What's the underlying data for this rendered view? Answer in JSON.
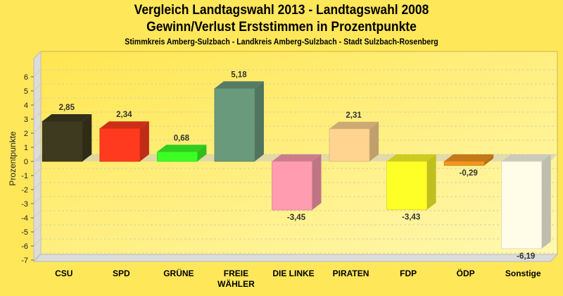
{
  "chart_data": {
    "type": "bar",
    "title": "Vergleich Landtagswahl 2013 - Landtagswahl 2008",
    "subtitle": "Gewinn/Verlust Erststimmen in Prozentpunkte",
    "subtitle2": "Stimmkreis Amberg-Sulzbach - Landkreis Amberg-Sulzbach - Stadt Sulzbach-Rosenberg",
    "xlabel": "",
    "ylabel": "Prozentpunkte",
    "ylim": [
      -7.6,
      7.3
    ],
    "yticks": [
      6,
      5,
      4,
      3,
      2,
      1,
      0,
      -1,
      -2,
      -3,
      -4,
      -5,
      -6,
      -7
    ],
    "grid": true,
    "style": "3d",
    "categories": [
      "CSU",
      "SPD",
      "GRÜNE",
      "FREIE WÄHLER",
      "DIE LINKE",
      "PIRATEN",
      "FDP",
      "ÖDP",
      "Sonstige"
    ],
    "category_lines": [
      [
        "CSU"
      ],
      [
        "SPD"
      ],
      [
        "GRÜNE"
      ],
      [
        "FREIE",
        "WÄHLER"
      ],
      [
        "DIE LINKE"
      ],
      [
        "PIRATEN"
      ],
      [
        "FDP"
      ],
      [
        "ÖDP"
      ],
      [
        "Sonstige"
      ]
    ],
    "values": [
      2.85,
      2.34,
      0.68,
      5.18,
      -3.45,
      2.31,
      -3.43,
      -0.29,
      -6.19
    ],
    "value_labels": [
      "2,85",
      "2,34",
      "0,68",
      "5,18",
      "-3,45",
      "2,31",
      "-3,43",
      "-0,29",
      "-6,19"
    ],
    "colors": [
      "#3d3a1f",
      "#ff3a1e",
      "#3cff26",
      "#6a9a7c",
      "#ff9cb0",
      "#ffd490",
      "#ffff28",
      "#f5961e",
      "#fffce8"
    ]
  }
}
